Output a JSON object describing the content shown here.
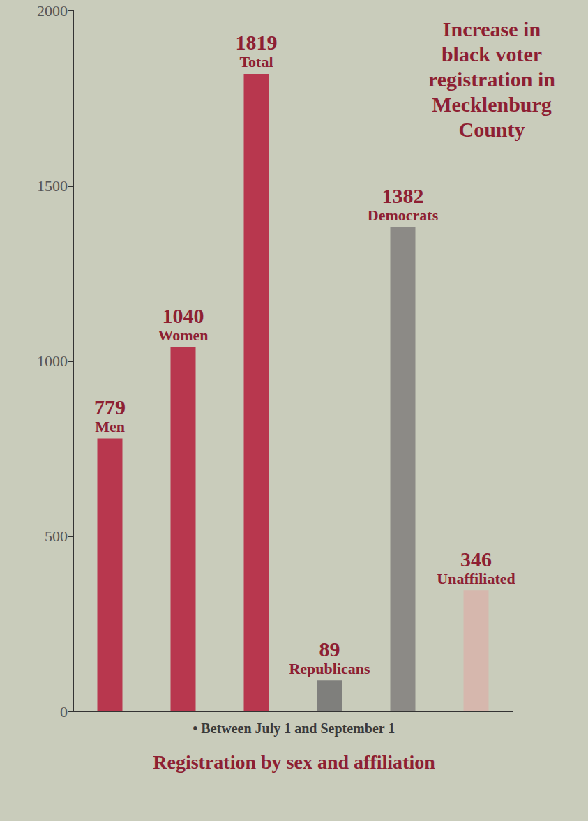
{
  "chart_data": {
    "type": "bar",
    "title": "Increase in black voter registration in Mecklenburg County",
    "subtitle": "Registration by sex and affiliation",
    "annotations": [
      "• Between July 1 and September 1"
    ],
    "categories": [
      "Men",
      "Women",
      "Total",
      "Republicans",
      "Democrats",
      "Unaffiliated"
    ],
    "values": [
      779,
      1040,
      1819,
      89,
      1382,
      346
    ],
    "colors": [
      "#b8374e",
      "#b8374e",
      "#b8374e",
      "#7f7f7c",
      "#8c8a86",
      "#d6b7ad"
    ],
    "ylim": [
      0,
      2000
    ],
    "yticks": [
      0,
      500,
      1000,
      1500,
      2000
    ],
    "grid": false,
    "data_labels": true,
    "tick_labels": "y"
  }
}
